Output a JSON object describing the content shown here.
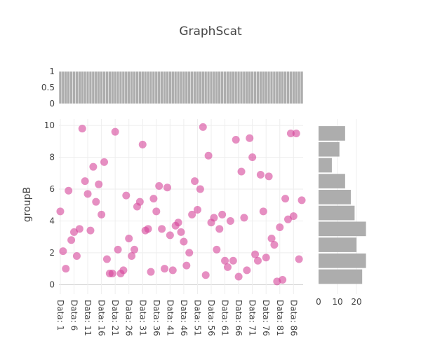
{
  "chart_data": {
    "type": "scatter",
    "title": "GraphScat",
    "xlabel": "",
    "ylabel": "groupB",
    "ylim": [
      -0.6,
      10.4
    ],
    "yticks": [
      0,
      2,
      4,
      6,
      8,
      10
    ],
    "x_tick_labels": [
      "Data: 1",
      "Data: 6",
      "Data: 11",
      "Data: 16",
      "Data: 21",
      "Data: 26",
      "Data: 31",
      "Data: 36",
      "Data: 41",
      "Data: 46",
      "Data: 51",
      "Data: 56",
      "Data: 61",
      "Data: 66",
      "Data: 71",
      "Data: 76",
      "Data: 81",
      "Data: 86"
    ],
    "marker_color": "#d6449a",
    "histogram_color": "#a9a9a9",
    "grid": true,
    "series": [
      {
        "name": "",
        "x": [
          1,
          2,
          3,
          4,
          5,
          6,
          7,
          8,
          9,
          10,
          11,
          12,
          13,
          14,
          15,
          16,
          17,
          18,
          19,
          20,
          21,
          22,
          23,
          24,
          25,
          26,
          27,
          28,
          29,
          30,
          31,
          32,
          33,
          34,
          35,
          36,
          37,
          38,
          39,
          40,
          41,
          42,
          43,
          44,
          45,
          46,
          47,
          48,
          49,
          50,
          51,
          52,
          53,
          54,
          55,
          56,
          57,
          58,
          59,
          60,
          61,
          62,
          63,
          64,
          65,
          66,
          67,
          68,
          69,
          70,
          71,
          72,
          73,
          74,
          75,
          76,
          77,
          78,
          79,
          80,
          81,
          82,
          83,
          84,
          85,
          86,
          87,
          88,
          89
        ],
        "y": [
          4.6,
          2.1,
          1.0,
          5.9,
          2.8,
          3.3,
          1.8,
          3.5,
          9.8,
          6.5,
          5.7,
          3.4,
          7.4,
          5.2,
          6.3,
          4.4,
          7.7,
          1.6,
          0.7,
          0.7,
          9.6,
          2.2,
          0.7,
          0.9,
          5.6,
          2.9,
          1.8,
          2.2,
          4.9,
          5.2,
          8.8,
          3.4,
          3.5,
          0.8,
          5.4,
          4.6,
          6.2,
          3.5,
          1.0,
          6.1,
          3.1,
          0.9,
          3.7,
          3.9,
          3.3,
          2.7,
          1.2,
          2.0,
          4.4,
          6.5,
          4.7,
          6.0,
          9.9,
          0.6,
          8.1,
          3.9,
          4.2,
          2.2,
          3.5,
          4.4,
          1.5,
          1.1,
          4.0,
          1.5,
          9.1,
          0.5,
          7.1,
          4.2,
          0.9,
          9.2,
          8.0,
          1.9,
          1.5,
          6.9,
          4.6,
          1.7,
          6.8,
          2.9,
          2.5,
          0.2,
          3.6,
          0.3,
          5.4,
          4.1,
          9.5,
          4.3,
          9.5,
          1.6,
          5.3
        ]
      }
    ],
    "top_histogram": {
      "ytick_labels": [
        "1",
        "0.5",
        "0"
      ],
      "yrange": [
        0,
        1
      ],
      "bin_value": 1
    },
    "side_histogram": {
      "xtick_labels": [
        "0",
        "10",
        "20"
      ],
      "xrange": [
        0,
        27
      ],
      "bins": [
        {
          "from": 0,
          "to": 1,
          "count": 23
        },
        {
          "from": 1,
          "to": 2,
          "count": 25
        },
        {
          "from": 2,
          "to": 3,
          "count": 20
        },
        {
          "from": 3,
          "to": 4,
          "count": 25
        },
        {
          "from": 4,
          "to": 5,
          "count": 19
        },
        {
          "from": 5,
          "to": 6,
          "count": 17
        },
        {
          "from": 6,
          "to": 7,
          "count": 14
        },
        {
          "from": 7,
          "to": 8,
          "count": 7
        },
        {
          "from": 8,
          "to": 9,
          "count": 11
        },
        {
          "from": 9,
          "to": 10,
          "count": 14
        }
      ]
    }
  }
}
